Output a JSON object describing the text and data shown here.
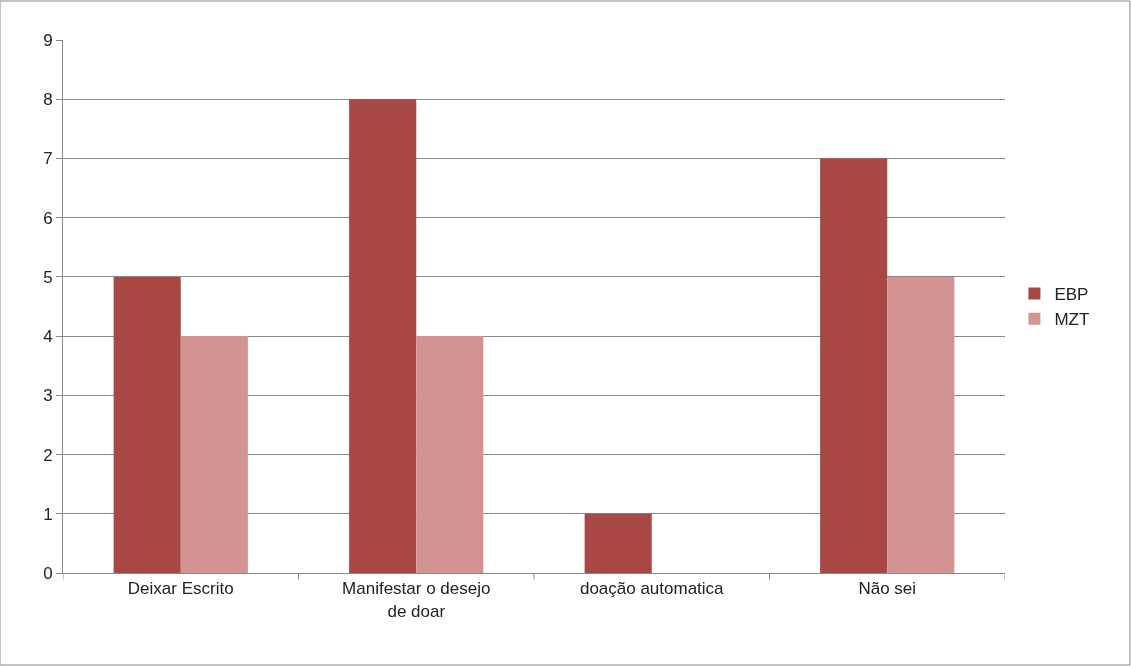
{
  "chart_data": {
    "type": "bar",
    "categories": [
      "Deixar Escrito",
      "Manifestar o desejo de doar",
      "doação automatica",
      "Não sei"
    ],
    "series": [
      {
        "name": "EBP",
        "color": "#a84743",
        "values": [
          5,
          8,
          1,
          7
        ]
      },
      {
        "name": "MZT",
        "color": "#d39391",
        "values": [
          4,
          4,
          0,
          5
        ]
      }
    ],
    "ylim": [
      0,
      9
    ],
    "yticks": [
      0,
      1,
      2,
      3,
      4,
      5,
      6,
      7,
      8,
      9
    ],
    "grid": "y",
    "legend": "right"
  }
}
